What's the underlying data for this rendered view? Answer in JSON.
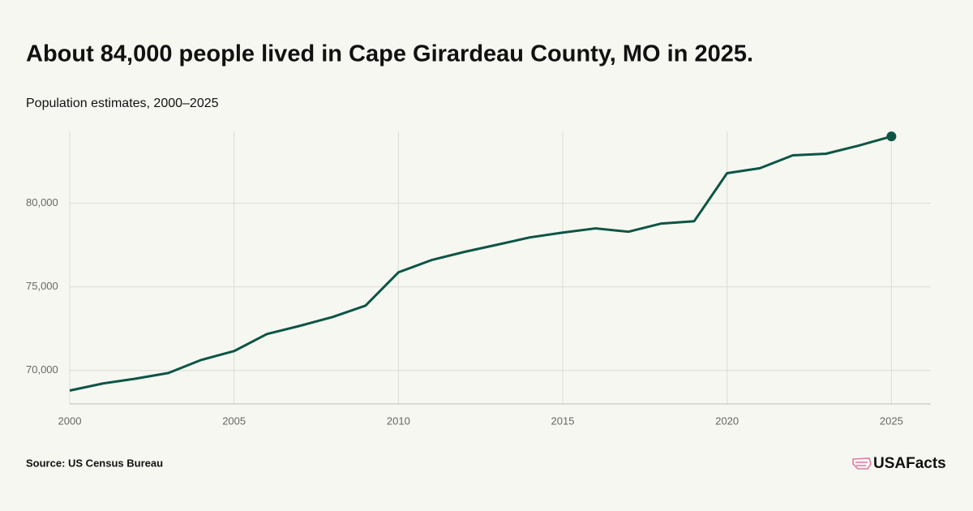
{
  "chart_data": {
    "type": "line",
    "title": "About 84,000 people lived in Cape Girardeau County, MO in 2025.",
    "subtitle": "Population estimates, 2000–2025",
    "source": "Source: US Census Bureau",
    "brand": "USAFacts",
    "x": [
      2000,
      2001,
      2002,
      2003,
      2004,
      2005,
      2006,
      2007,
      2008,
      2009,
      2010,
      2011,
      2012,
      2013,
      2014,
      2015,
      2016,
      2017,
      2018,
      2019,
      2020,
      2021,
      2022,
      2023,
      2024,
      2025
    ],
    "series": [
      {
        "name": "Population",
        "color": "#0b5545",
        "values": [
          68800,
          69220,
          69510,
          69850,
          70630,
          71160,
          72180,
          72670,
          73200,
          73880,
          75870,
          76600,
          77090,
          77520,
          77960,
          78250,
          78500,
          78300,
          78790,
          78930,
          81800,
          82100,
          82870,
          82960,
          83450,
          84000
        ]
      }
    ],
    "xlim": [
      2000,
      2026.2
    ],
    "xticks": [
      2000,
      2005,
      2010,
      2015,
      2020,
      2025
    ],
    "ylim": [
      68000,
      84300
    ],
    "yticks": [
      {
        "value": 70000,
        "label": "70,000"
      },
      {
        "value": 75000,
        "label": "75,000"
      },
      {
        "value": 80000,
        "label": "80,000"
      }
    ],
    "grid": true
  }
}
